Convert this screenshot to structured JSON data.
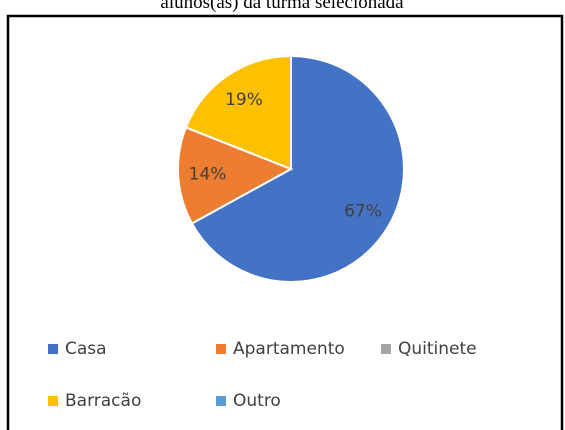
{
  "chart_data": {
    "type": "pie",
    "title": "alunos(as) da turma selecionada",
    "categories": [
      "Casa",
      "Apartamento",
      "Quitinete",
      "Barracão",
      "Outro"
    ],
    "values": [
      67,
      14,
      0,
      19,
      0
    ],
    "value_labels": [
      "67%",
      "14%",
      null,
      "19%",
      null
    ],
    "colors": [
      "#4472c4",
      "#ed7d31",
      "#a5a5a5",
      "#ffc000",
      "#5b9bd5"
    ],
    "legend": "bottom"
  }
}
